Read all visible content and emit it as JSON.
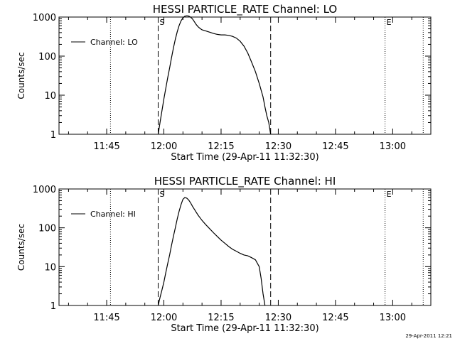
{
  "footer": {
    "timestamp": "29-Apr-2011 12:21"
  },
  "chart_data": [
    {
      "type": "line",
      "title": "HESSI PARTICLE_RATE Channel: LO",
      "xlabel": "Start Time (29-Apr-11 11:32:30)",
      "ylabel": "Counts/sec",
      "y_scale": "log",
      "xlim": [
        "11:32:30",
        "13:10:00"
      ],
      "ylim": [
        1,
        1000
      ],
      "x_ticks": [
        "11:45",
        "12:00",
        "12:15",
        "12:30",
        "12:45",
        "13:00"
      ],
      "y_ticks": [
        "1",
        "10",
        "100",
        "1000"
      ],
      "legend": {
        "position": "top-left",
        "entries": [
          "Channel: LO"
        ]
      },
      "markers": {
        "start_label": "S",
        "end_label": "E"
      },
      "dashed_lines_x": [
        "11:58:30",
        "12:28:00"
      ],
      "dotted_lines_x": [
        "11:46:00",
        "12:58:00",
        "13:08:00"
      ],
      "series": [
        {
          "name": "Channel: LO",
          "x": [
            "11:58:30",
            "11:59:00",
            "11:59:30",
            "12:00:00",
            "12:00:30",
            "12:01:00",
            "12:01:30",
            "12:02:00",
            "12:02:30",
            "12:03:00",
            "12:03:30",
            "12:04:00",
            "12:04:30",
            "12:05:00",
            "12:05:30",
            "12:06:00",
            "12:06:30",
            "12:07:00",
            "12:07:30",
            "12:08:00",
            "12:08:30",
            "12:09:00",
            "12:09:30",
            "12:10:00",
            "12:11:00",
            "12:12:00",
            "12:13:00",
            "12:14:00",
            "12:15:00",
            "12:16:00",
            "12:17:00",
            "12:18:00",
            "12:19:00",
            "12:20:00",
            "12:21:00",
            "12:22:00",
            "12:23:00",
            "12:24:00",
            "12:25:00",
            "12:26:00",
            "12:26:30",
            "12:27:00",
            "12:27:30",
            "12:28:00"
          ],
          "values": [
            1,
            2,
            4,
            8,
            15,
            28,
            50,
            90,
            160,
            270,
            420,
            610,
            800,
            950,
            1050,
            1080,
            1060,
            990,
            900,
            760,
            640,
            560,
            510,
            470,
            440,
            410,
            380,
            360,
            350,
            350,
            340,
            320,
            290,
            240,
            180,
            120,
            70,
            40,
            20,
            9,
            5,
            3,
            2,
            1
          ]
        }
      ]
    },
    {
      "type": "line",
      "title": "HESSI PARTICLE_RATE Channel: HI",
      "xlabel": "Start Time (29-Apr-11 11:32:30)",
      "ylabel": "Counts/sec",
      "y_scale": "log",
      "xlim": [
        "11:32:30",
        "13:10:00"
      ],
      "ylim": [
        1,
        1000
      ],
      "x_ticks": [
        "11:45",
        "12:00",
        "12:15",
        "12:30",
        "12:45",
        "13:00"
      ],
      "y_ticks": [
        "1",
        "10",
        "100",
        "1000"
      ],
      "legend": {
        "position": "top-left",
        "entries": [
          "Channel: HI"
        ]
      },
      "markers": {
        "start_label": "S",
        "end_label": "E"
      },
      "dashed_lines_x": [
        "11:58:30",
        "12:28:00"
      ],
      "dotted_lines_x": [
        "11:46:00",
        "12:58:00",
        "13:08:00"
      ],
      "series": [
        {
          "name": "Channel: HI",
          "x": [
            "11:58:30",
            "11:59:00",
            "11:59:30",
            "12:00:00",
            "12:00:30",
            "12:01:00",
            "12:01:30",
            "12:02:00",
            "12:02:30",
            "12:03:00",
            "12:03:30",
            "12:04:00",
            "12:04:30",
            "12:05:00",
            "12:05:30",
            "12:06:00",
            "12:06:30",
            "12:07:00",
            "12:07:30",
            "12:08:00",
            "12:08:30",
            "12:09:00",
            "12:09:30",
            "12:10:00",
            "12:11:00",
            "12:12:00",
            "12:13:00",
            "12:14:00",
            "12:15:00",
            "12:16:00",
            "12:17:00",
            "12:18:00",
            "12:19:00",
            "12:20:00",
            "12:21:00",
            "12:22:00",
            "12:23:00",
            "12:24:00",
            "12:25:00",
            "12:25:30",
            "12:26:00",
            "12:26:30"
          ],
          "values": [
            1,
            1.6,
            2.5,
            4,
            7,
            12,
            20,
            35,
            60,
            100,
            170,
            270,
            400,
            540,
            600,
            580,
            520,
            440,
            360,
            300,
            250,
            210,
            180,
            155,
            120,
            95,
            75,
            60,
            48,
            40,
            33,
            28,
            25,
            22,
            20,
            19,
            17,
            15,
            10,
            5,
            2,
            1
          ]
        }
      ]
    }
  ]
}
